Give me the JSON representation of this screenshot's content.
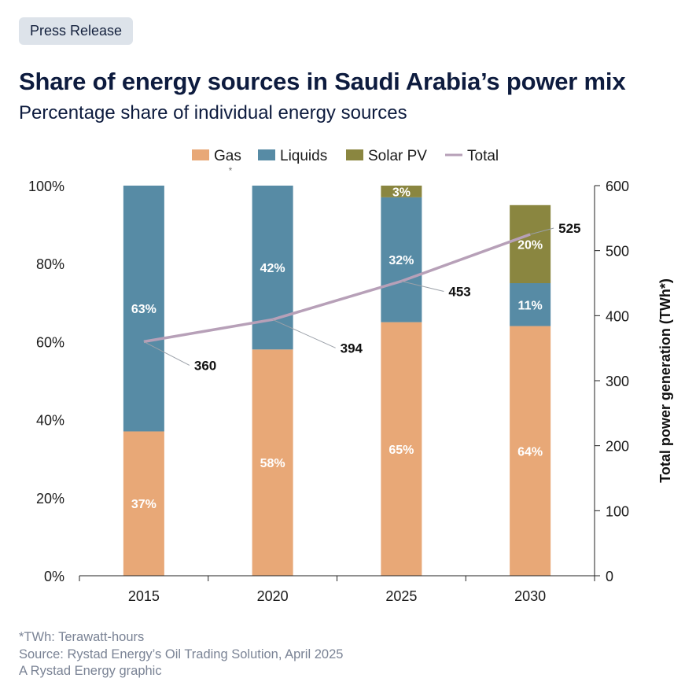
{
  "badge": "Press Release",
  "title": "Share of energy sources in Saudi Arabia’s power mix",
  "subtitle": "Percentage share of individual energy sources",
  "chart_data": {
    "type": "bar",
    "stacked": true,
    "categories": [
      "2015",
      "2020",
      "2025",
      "2030"
    ],
    "series": [
      {
        "name": "Gas",
        "values": [
          37,
          58,
          65,
          64
        ],
        "labels": [
          "37%",
          "58%",
          "65%",
          "64%"
        ],
        "color": "#e8a877"
      },
      {
        "name": "Liquids",
        "values": [
          63,
          42,
          32,
          11
        ],
        "labels": [
          "63%",
          "42%",
          "32%",
          "11%"
        ],
        "color": "#578ba5"
      },
      {
        "name": "Solar PV",
        "values": [
          0,
          0,
          3,
          20
        ],
        "labels": [
          "",
          "",
          "3%",
          "20%"
        ],
        "color": "#8a8640"
      }
    ],
    "line_series": {
      "name": "Total",
      "values": [
        360,
        394,
        453,
        525
      ],
      "labels": [
        "360",
        "394",
        "453",
        "525"
      ],
      "color": "#b7a0b8",
      "axis": "right"
    },
    "ylim_left": [
      0,
      100
    ],
    "yticks_left": [
      "0%",
      "20%",
      "40%",
      "60%",
      "80%",
      "100%"
    ],
    "ylim_right": [
      0,
      600
    ],
    "yticks_right": [
      "0",
      "100",
      "200",
      "300",
      "400",
      "500",
      "600"
    ],
    "ylabel_right": "Total power generation (TWh*)",
    "legend_marker": "*",
    "legend_position": "top",
    "grid": false
  },
  "footer": {
    "note": "*TWh: Terawatt-hours",
    "source": "Source: Rystad Energy’s Oil Trading Solution, April 2025",
    "credit": "A Rystad Energy graphic"
  }
}
